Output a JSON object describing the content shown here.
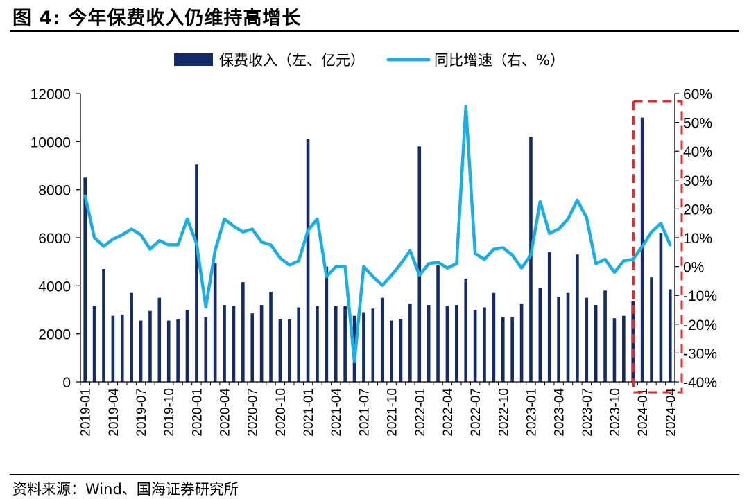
{
  "header": {
    "title": "图 4:  今年保费收入仍维持高增长"
  },
  "footer": {
    "source": "资料来源：Wind、国海证券研究所"
  },
  "chart_data": {
    "type": "bar",
    "legend": {
      "placement": "top-center",
      "bar_label": "保费收入（左、亿元）",
      "line_label": "同比增速（右、%）"
    },
    "colors": {
      "bar": "#152a6b",
      "line": "#18aee6",
      "highlight": "#e8272a"
    },
    "x": [
      "2019-01",
      "2019-02",
      "2019-03",
      "2019-04",
      "2019-05",
      "2019-06",
      "2019-07",
      "2019-08",
      "2019-09",
      "2019-10",
      "2019-11",
      "2019-12",
      "2020-01",
      "2020-02",
      "2020-03",
      "2020-04",
      "2020-05",
      "2020-06",
      "2020-07",
      "2020-08",
      "2020-09",
      "2020-10",
      "2020-11",
      "2020-12",
      "2021-01",
      "2021-02",
      "2021-03",
      "2021-04",
      "2021-05",
      "2021-06",
      "2021-07",
      "2021-08",
      "2021-09",
      "2021-10",
      "2021-11",
      "2021-12",
      "2022-01",
      "2022-02",
      "2022-03",
      "2022-04",
      "2022-05",
      "2022-06",
      "2022-07",
      "2022-08",
      "2022-09",
      "2022-10",
      "2022-11",
      "2022-12",
      "2023-01",
      "2023-02",
      "2023-03",
      "2023-04",
      "2023-05",
      "2023-06",
      "2023-07",
      "2023-08",
      "2023-09",
      "2023-10",
      "2023-11",
      "2023-12",
      "2024-01",
      "2024-02",
      "2024-03",
      "2024-04"
    ],
    "x_tick_labels": [
      "2019-01",
      "2019-04",
      "2019-07",
      "2019-10",
      "2020-01",
      "2020-04",
      "2020-07",
      "2020-10",
      "2021-01",
      "2021-04",
      "2021-07",
      "2021-10",
      "2022-01",
      "2022-04",
      "2022-07",
      "2022-10",
      "2023-01",
      "2023-04",
      "2023-07",
      "2023-10",
      "2024-01",
      "2024-04"
    ],
    "series": [
      {
        "name": "保费收入（左、亿元）",
        "type": "bar",
        "axis": "left",
        "values": [
          8500,
          3150,
          4700,
          2750,
          2800,
          3700,
          2550,
          2950,
          3500,
          2550,
          2600,
          3000,
          9050,
          2700,
          4950,
          3200,
          3150,
          4150,
          2850,
          3200,
          3750,
          2600,
          2600,
          3100,
          10100,
          3150,
          4800,
          3150,
          3150,
          2750,
          2900,
          3050,
          3500,
          2550,
          2600,
          3250,
          9800,
          3200,
          4850,
          3150,
          3200,
          4300,
          3000,
          3100,
          3700,
          2700,
          2700,
          3250,
          10200,
          3900,
          5400,
          3550,
          3700,
          5300,
          3500,
          3200,
          3800,
          2650,
          2750,
          3350,
          11000,
          4350,
          6200,
          3850
        ]
      },
      {
        "name": "同比增速（右、%）",
        "type": "line",
        "axis": "right",
        "values": [
          24.5,
          10,
          7,
          9.5,
          11,
          13,
          11,
          6,
          9,
          7.5,
          7.5,
          16.5,
          8,
          -14,
          5.5,
          16.5,
          14,
          12,
          13,
          8.5,
          7.5,
          3,
          0.5,
          2,
          12.5,
          16.5,
          -3.5,
          0,
          0,
          -33,
          0,
          -3.5,
          -6.5,
          -3,
          1,
          5.5,
          -3,
          1,
          1.5,
          -0.5,
          1,
          55.5,
          4.5,
          2.5,
          6,
          6.5,
          4,
          -0.5,
          4,
          22.5,
          11.5,
          13,
          16.5,
          23,
          17,
          1,
          2.5,
          -2,
          2,
          2.5,
          7,
          12,
          15,
          7.5
        ]
      }
    ],
    "y_left": {
      "min": 0,
      "max": 12000,
      "ticks": [
        0,
        2000,
        4000,
        6000,
        8000,
        10000,
        12000
      ]
    },
    "y_right": {
      "min": -40,
      "max": 60,
      "ticks": [
        "-40%",
        "-30%",
        "-20%",
        "-10%",
        "0%",
        "10%",
        "20%",
        "30%",
        "40%",
        "50%",
        "60%"
      ]
    },
    "highlight_range": [
      "2024-01",
      "2024-04"
    ]
  }
}
